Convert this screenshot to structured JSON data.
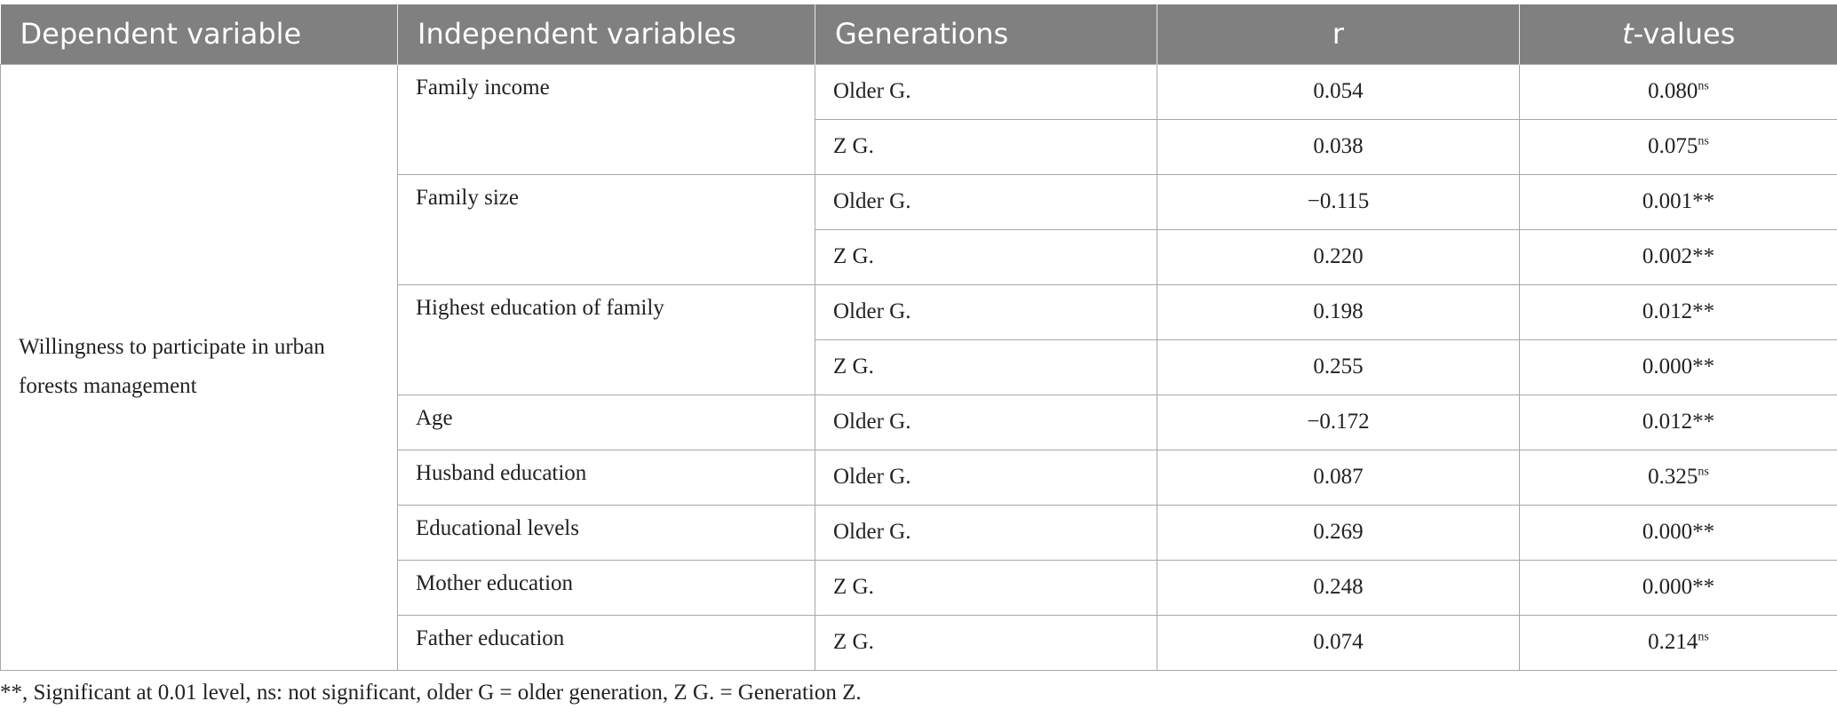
{
  "table": {
    "headers": {
      "dependent": "Dependent variable",
      "independent": "Independent variables",
      "generations": "Generations",
      "r": "r",
      "t_prefix": "t",
      "t_suffix": "-values"
    },
    "dependent_variable": "Willingness to participate in urban forests management",
    "groups": [
      {
        "variable": "Family income",
        "rows": [
          {
            "generation": "Older G.",
            "r": "0.054",
            "t": "0.080",
            "mark": "ns"
          },
          {
            "generation": "Z G.",
            "r": "0.038",
            "t": "0.075",
            "mark": "ns"
          }
        ]
      },
      {
        "variable": "Family size",
        "rows": [
          {
            "generation": "Older G.",
            "r": "−0.115",
            "t": "0.001**",
            "mark": ""
          },
          {
            "generation": "Z G.",
            "r": "0.220",
            "t": "0.002**",
            "mark": ""
          }
        ]
      },
      {
        "variable": "Highest education of family",
        "rows": [
          {
            "generation": "Older G.",
            "r": "0.198",
            "t": "0.012**",
            "mark": ""
          },
          {
            "generation": "Z G.",
            "r": "0.255",
            "t": "0.000**",
            "mark": ""
          }
        ]
      },
      {
        "variable": "Age",
        "rows": [
          {
            "generation": "Older G.",
            "r": "−0.172",
            "t": "0.012**",
            "mark": ""
          }
        ]
      },
      {
        "variable": "Husband education",
        "rows": [
          {
            "generation": "Older G.",
            "r": "0.087",
            "t": "0.325",
            "mark": "ns"
          }
        ]
      },
      {
        "variable": "Educational levels",
        "rows": [
          {
            "generation": "Older G.",
            "r": "0.269",
            "t": "0.000**",
            "mark": ""
          }
        ]
      },
      {
        "variable": "Mother education",
        "rows": [
          {
            "generation": "Z G.",
            "r": "0.248",
            "t": "0.000**",
            "mark": ""
          }
        ]
      },
      {
        "variable": "Father education",
        "rows": [
          {
            "generation": "Z G.",
            "r": "0.074",
            "t": "0.214",
            "mark": "ns"
          }
        ]
      }
    ]
  },
  "footnote": "**, Significant at 0.01 level, ns: not significant, older G = older generation, Z G. = Generation Z.",
  "colors": {
    "header_bg": "#808080",
    "header_text": "#ffffff",
    "grid": "#a8a8a8",
    "body_text": "#222222"
  }
}
